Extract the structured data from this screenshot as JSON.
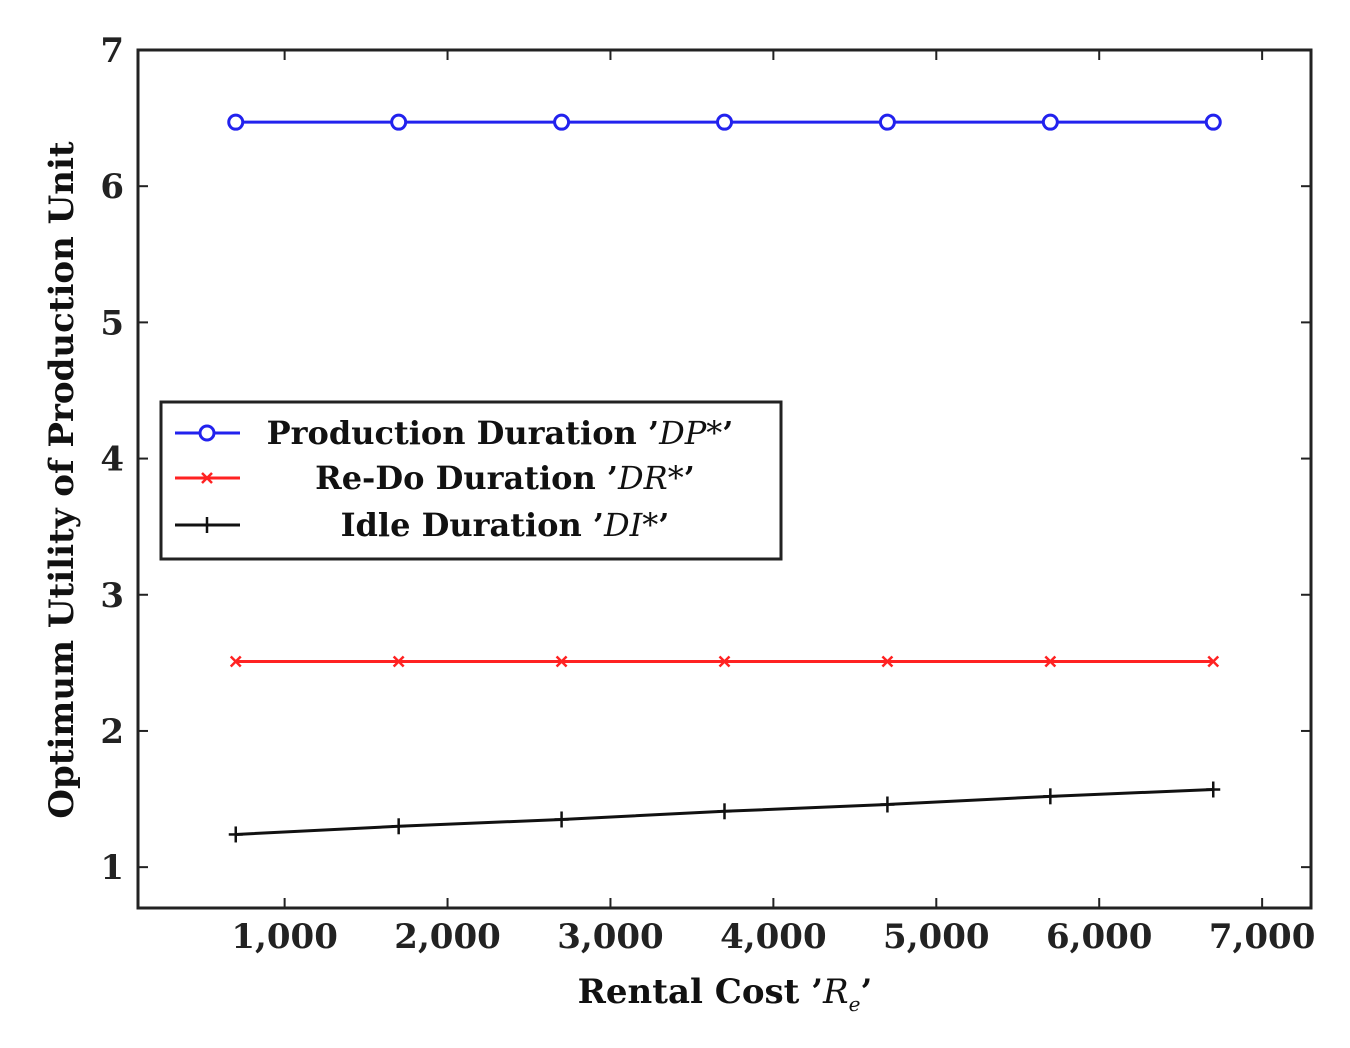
{
  "chart_data": {
    "type": "line",
    "title": "",
    "xlabel": "Rental Cost",
    "xlabel_symbol": "R",
    "xlabel_sub": "e",
    "ylabel": "Optimum Utility of Production Unit",
    "xlim": [
      100,
      7300
    ],
    "ylim": [
      0.7,
      7
    ],
    "x_ticks": [
      1000,
      2000,
      3000,
      4000,
      5000,
      6000,
      7000
    ],
    "x_tick_labels": [
      "1,000",
      "2,000",
      "3,000",
      "4,000",
      "5,000",
      "6,000",
      "7,000"
    ],
    "y_ticks": [
      1,
      2,
      3,
      4,
      5,
      6,
      7
    ],
    "y_tick_labels": [
      "1",
      "2",
      "3",
      "4",
      "5",
      "6",
      "7"
    ],
    "grid": false,
    "legend_position": "middle-left",
    "x": [
      700,
      1700,
      2700,
      3700,
      4700,
      5700,
      6700
    ],
    "series": [
      {
        "name": "Production Duration",
        "symbol": "DP*",
        "color": "#2222ee",
        "marker": "circle",
        "values": [
          6.47,
          6.47,
          6.47,
          6.47,
          6.47,
          6.47,
          6.47
        ]
      },
      {
        "name": "Re-Do Duration",
        "symbol": "DR*",
        "color": "#ff2222",
        "marker": "x",
        "values": [
          2.51,
          2.51,
          2.51,
          2.51,
          2.51,
          2.51,
          2.51
        ]
      },
      {
        "name": "Idle Duration",
        "symbol": "DI*",
        "color": "#111111",
        "marker": "plus",
        "values": [
          1.24,
          1.3,
          1.35,
          1.41,
          1.46,
          1.52,
          1.57
        ]
      }
    ]
  }
}
